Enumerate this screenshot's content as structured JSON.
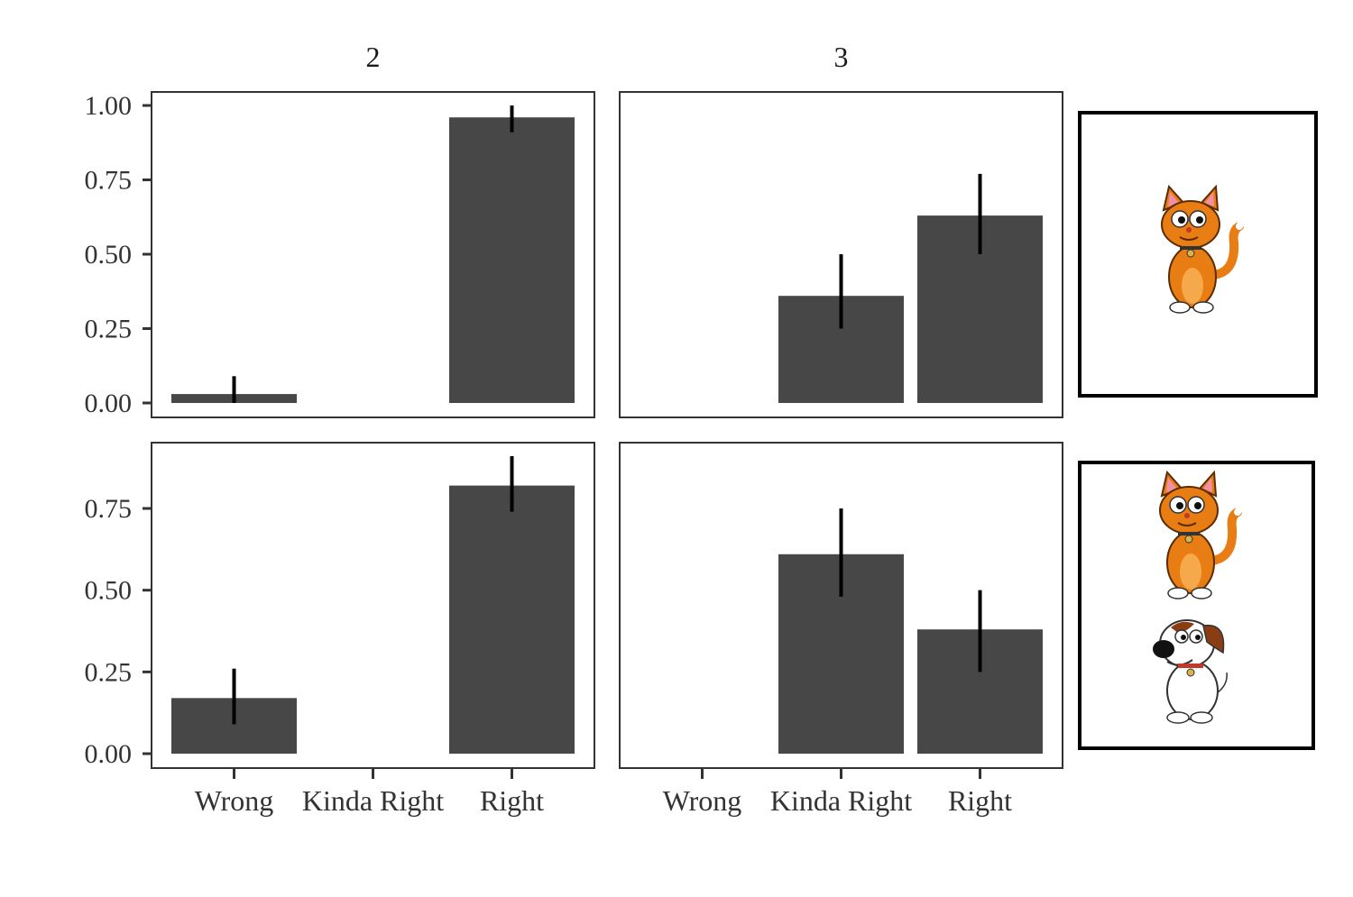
{
  "chart_data": {
    "type": "bar",
    "facets": {
      "columns": [
        "2",
        "3"
      ],
      "rows": [
        "cat",
        "cat and dog"
      ]
    },
    "categories": [
      "Wrong",
      "Kinda Right",
      "Right"
    ],
    "row_ylims": [
      [
        0,
        1.0
      ],
      [
        0,
        0.92
      ]
    ],
    "row_yticks": [
      [
        "0.00",
        "0.25",
        "0.50",
        "0.75",
        "1.00"
      ],
      [
        "0.00",
        "0.25",
        "0.50",
        "0.75"
      ]
    ],
    "panels": [
      {
        "row": 0,
        "col": 0,
        "values": [
          0.03,
          0.0,
          0.96
        ],
        "errors": [
          [
            0.0,
            0.09
          ],
          null,
          [
            0.91,
            1.0
          ]
        ]
      },
      {
        "row": 0,
        "col": 1,
        "values": [
          0.0,
          0.36,
          0.63
        ],
        "errors": [
          null,
          [
            0.25,
            0.5
          ],
          [
            0.5,
            0.77
          ]
        ]
      },
      {
        "row": 1,
        "col": 0,
        "values": [
          0.17,
          0.0,
          0.82
        ],
        "errors": [
          [
            0.09,
            0.26
          ],
          null,
          [
            0.74,
            0.91
          ]
        ]
      },
      {
        "row": 1,
        "col": 1,
        "values": [
          0.0,
          0.61,
          0.38
        ],
        "errors": [
          null,
          [
            0.48,
            0.75
          ],
          [
            0.25,
            0.5
          ]
        ]
      }
    ],
    "row_images": [
      [
        "cat-icon"
      ],
      [
        "cat-icon",
        "dog-icon"
      ]
    ],
    "colors": {
      "bar": "#474747",
      "error": "#000000",
      "axis": "#333333"
    },
    "grid": false,
    "title": "",
    "xlabel": "",
    "ylabel": ""
  }
}
